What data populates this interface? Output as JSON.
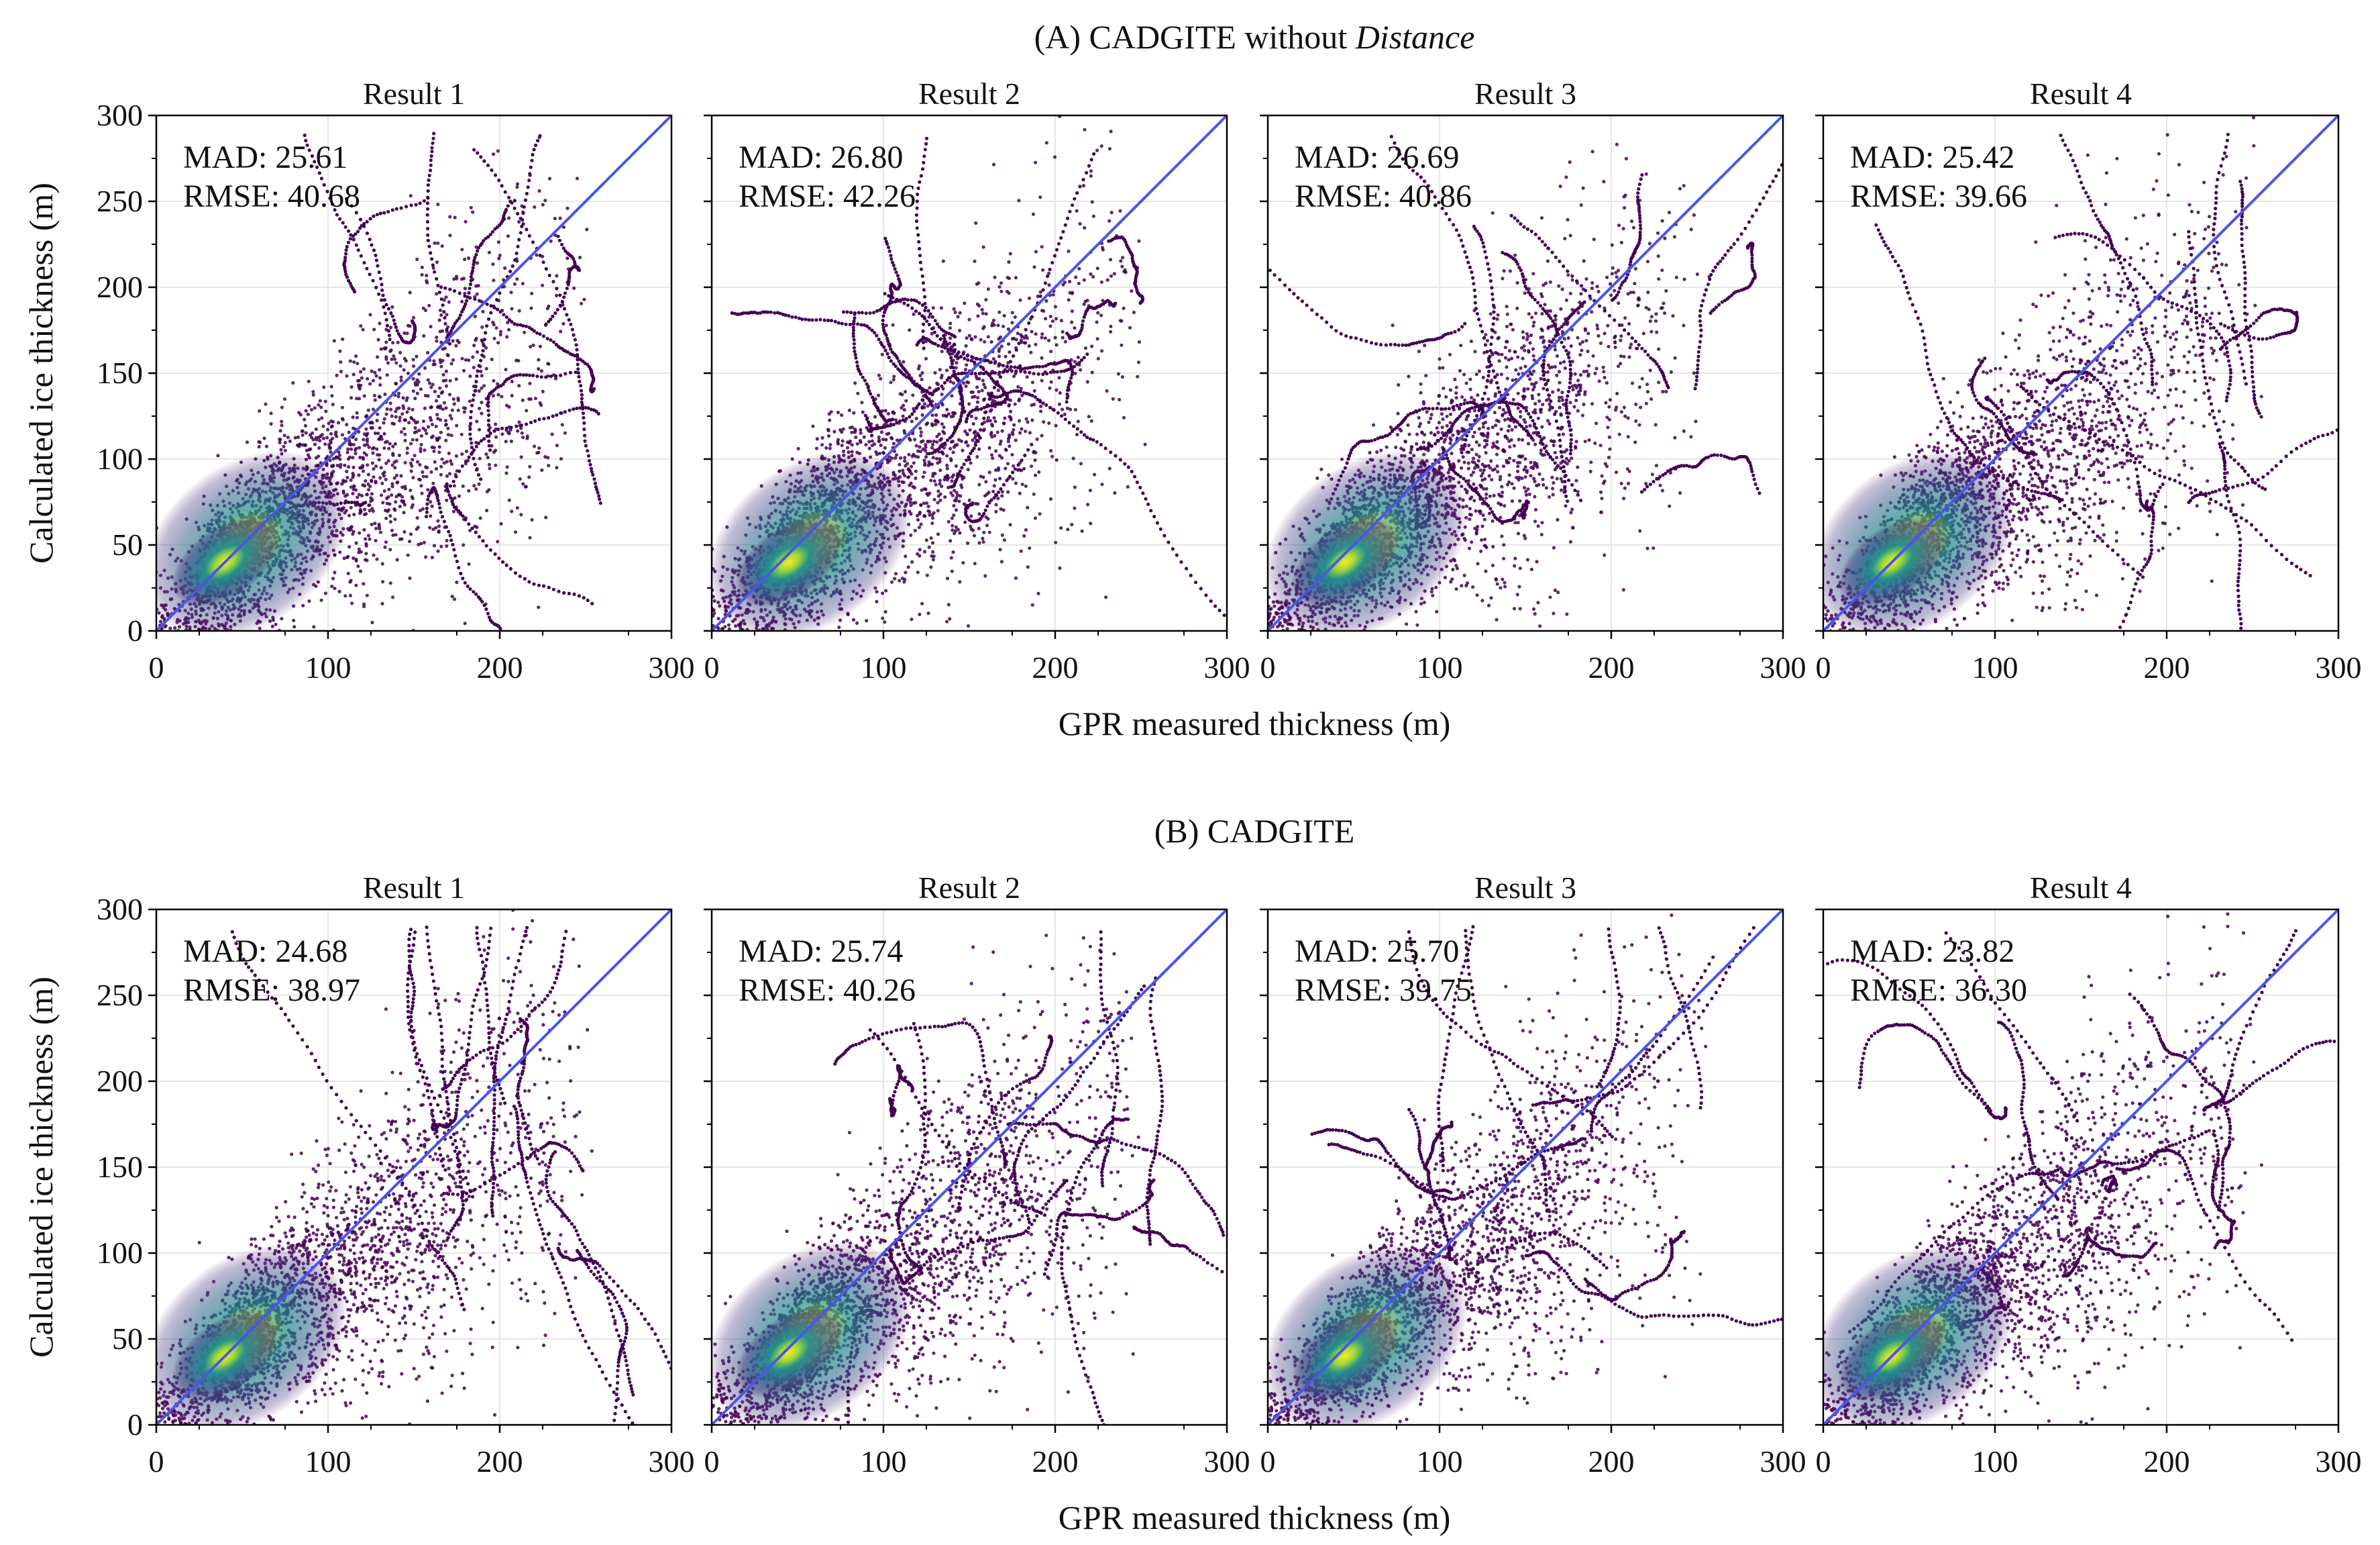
{
  "figure": {
    "sections": [
      {
        "id": "A",
        "title_prefix": "(A) CADGITE without ",
        "title_italic": "Distance"
      },
      {
        "id": "B",
        "title_prefix": "(B) CADGITE",
        "title_italic": ""
      }
    ],
    "xlabel": "GPR measured thickness (m)",
    "ylabel": "Calculated ice thickness (m)",
    "colors": {
      "scatter_sparse": "#440154",
      "scatter_mid": "#31688e",
      "scatter_teal": "#21918c",
      "scatter_dense": "#fde725",
      "one_to_one_line": "#4a55e8",
      "grid": "#e6e6e6"
    }
  },
  "chart_data": [
    {
      "type": "scatter",
      "section": "A",
      "title": "Result 1",
      "stats": [
        "MAD: 25.61",
        "RMSE: 40.68"
      ],
      "xlim": [
        0,
        300
      ],
      "ylim": [
        0,
        300
      ],
      "xticks": [
        0,
        100,
        200,
        300
      ],
      "yticks": [
        0,
        50,
        100,
        150,
        200,
        250,
        300
      ],
      "grid": true,
      "reference_line": "y = x",
      "density_peak": [
        40,
        40
      ]
    },
    {
      "type": "scatter",
      "section": "A",
      "title": "Result 2",
      "stats": [
        "MAD: 26.80",
        "RMSE: 42.26"
      ],
      "xlim": [
        0,
        300
      ],
      "ylim": [
        0,
        300
      ],
      "xticks": [
        0,
        100,
        200,
        300
      ],
      "yticks": [
        0,
        50,
        100,
        150,
        200,
        250,
        300
      ],
      "grid": true,
      "reference_line": "y = x",
      "density_peak": [
        45,
        40
      ]
    },
    {
      "type": "scatter",
      "section": "A",
      "title": "Result 3",
      "stats": [
        "MAD: 26.69",
        "RMSE: 40.86"
      ],
      "xlim": [
        0,
        300
      ],
      "ylim": [
        0,
        300
      ],
      "xticks": [
        0,
        100,
        200,
        300
      ],
      "yticks": [
        0,
        50,
        100,
        150,
        200,
        250,
        300
      ],
      "grid": true,
      "reference_line": "y = x",
      "density_peak": [
        45,
        40
      ]
    },
    {
      "type": "scatter",
      "section": "A",
      "title": "Result 4",
      "stats": [
        "MAD: 25.42",
        "RMSE: 39.66"
      ],
      "xlim": [
        0,
        300
      ],
      "ylim": [
        0,
        300
      ],
      "xticks": [
        0,
        100,
        200,
        300
      ],
      "yticks": [
        0,
        50,
        100,
        150,
        200,
        250,
        300
      ],
      "grid": true,
      "reference_line": "y = x",
      "density_peak": [
        40,
        40
      ]
    },
    {
      "type": "scatter",
      "section": "B",
      "title": "Result 1",
      "stats": [
        "MAD: 24.68",
        "RMSE: 38.97"
      ],
      "xlim": [
        0,
        300
      ],
      "ylim": [
        0,
        300
      ],
      "xticks": [
        0,
        100,
        200,
        300
      ],
      "yticks": [
        0,
        50,
        100,
        150,
        200,
        250,
        300
      ],
      "grid": true,
      "reference_line": "y = x",
      "density_peak": [
        40,
        40
      ]
    },
    {
      "type": "scatter",
      "section": "B",
      "title": "Result 2",
      "stats": [
        "MAD: 25.74",
        "RMSE: 40.26"
      ],
      "xlim": [
        0,
        300
      ],
      "ylim": [
        0,
        300
      ],
      "xticks": [
        0,
        100,
        200,
        300
      ],
      "yticks": [
        0,
        50,
        100,
        150,
        200,
        250,
        300
      ],
      "grid": true,
      "reference_line": "y = x",
      "density_peak": [
        45,
        42
      ]
    },
    {
      "type": "scatter",
      "section": "B",
      "title": "Result 3",
      "stats": [
        "MAD: 25.70",
        "RMSE: 39.75"
      ],
      "xlim": [
        0,
        300
      ],
      "ylim": [
        0,
        300
      ],
      "xticks": [
        0,
        100,
        200,
        300
      ],
      "yticks": [
        0,
        50,
        100,
        150,
        200,
        250,
        300
      ],
      "grid": true,
      "reference_line": "y = x",
      "density_peak": [
        45,
        40
      ]
    },
    {
      "type": "scatter",
      "section": "B",
      "title": "Result 4",
      "stats": [
        "MAD: 23.82",
        "RMSE: 36.30"
      ],
      "xlim": [
        0,
        300
      ],
      "ylim": [
        0,
        300
      ],
      "xticks": [
        0,
        100,
        200,
        300
      ],
      "yticks": [
        0,
        50,
        100,
        150,
        200,
        250,
        300
      ],
      "grid": true,
      "reference_line": "y = x",
      "density_peak": [
        40,
        40
      ]
    }
  ]
}
